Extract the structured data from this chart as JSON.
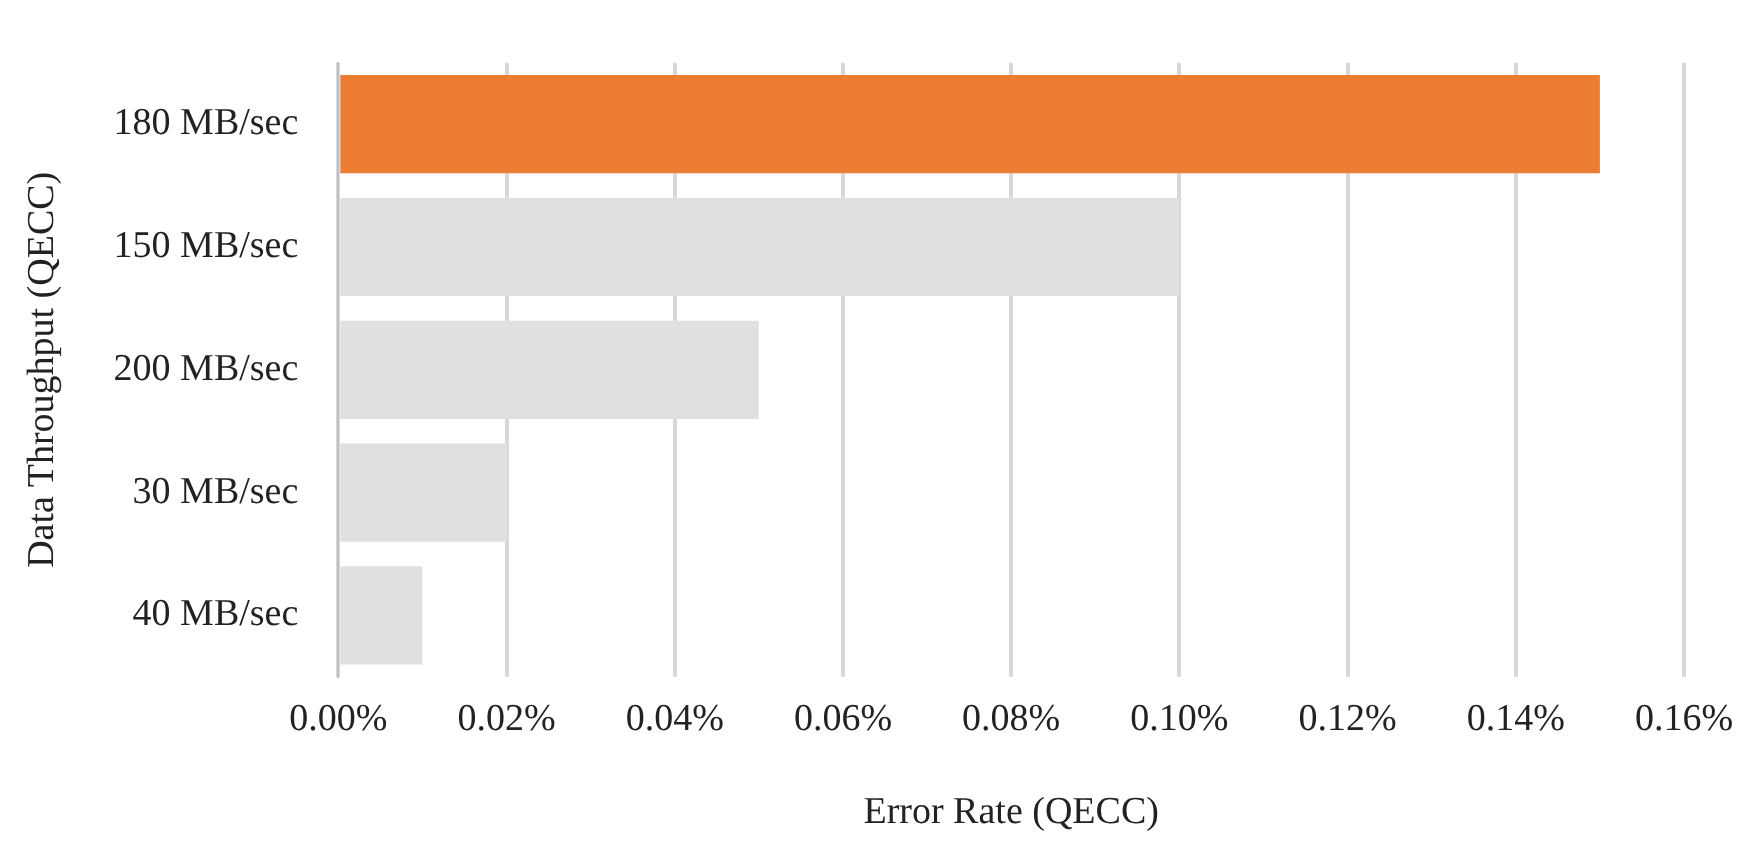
{
  "chart_data": {
    "type": "bar",
    "orientation": "horizontal",
    "xlabel": "Error Rate (QECC)",
    "ylabel": "Data Throughput (QECC)",
    "categories": [
      "180 MB/sec",
      "150 MB/sec",
      "200 MB/sec",
      "30 MB/sec",
      "40 MB/sec"
    ],
    "values": [
      0.15,
      0.1,
      0.05,
      0.02,
      0.01
    ],
    "colors": [
      "#ed7d31",
      "#e0e0e0",
      "#e0e0e0",
      "#e0e0e0",
      "#e0e0e0"
    ],
    "xlim": [
      0,
      0.16
    ],
    "xticks": [
      {
        "value": 0,
        "label": "0.00%"
      },
      {
        "value": 0.02,
        "label": "0.02%"
      },
      {
        "value": 0.04,
        "label": "0.04%"
      },
      {
        "value": 0.06,
        "label": "0.06%"
      },
      {
        "value": 0.08,
        "label": "0.08%"
      },
      {
        "value": 0.1,
        "label": "0.10%"
      },
      {
        "value": 0.12,
        "label": "0.12%"
      },
      {
        "value": 0.14,
        "label": "0.14%"
      },
      {
        "value": 0.16,
        "label": "0.16%"
      }
    ],
    "grid": "x",
    "legend": false
  }
}
